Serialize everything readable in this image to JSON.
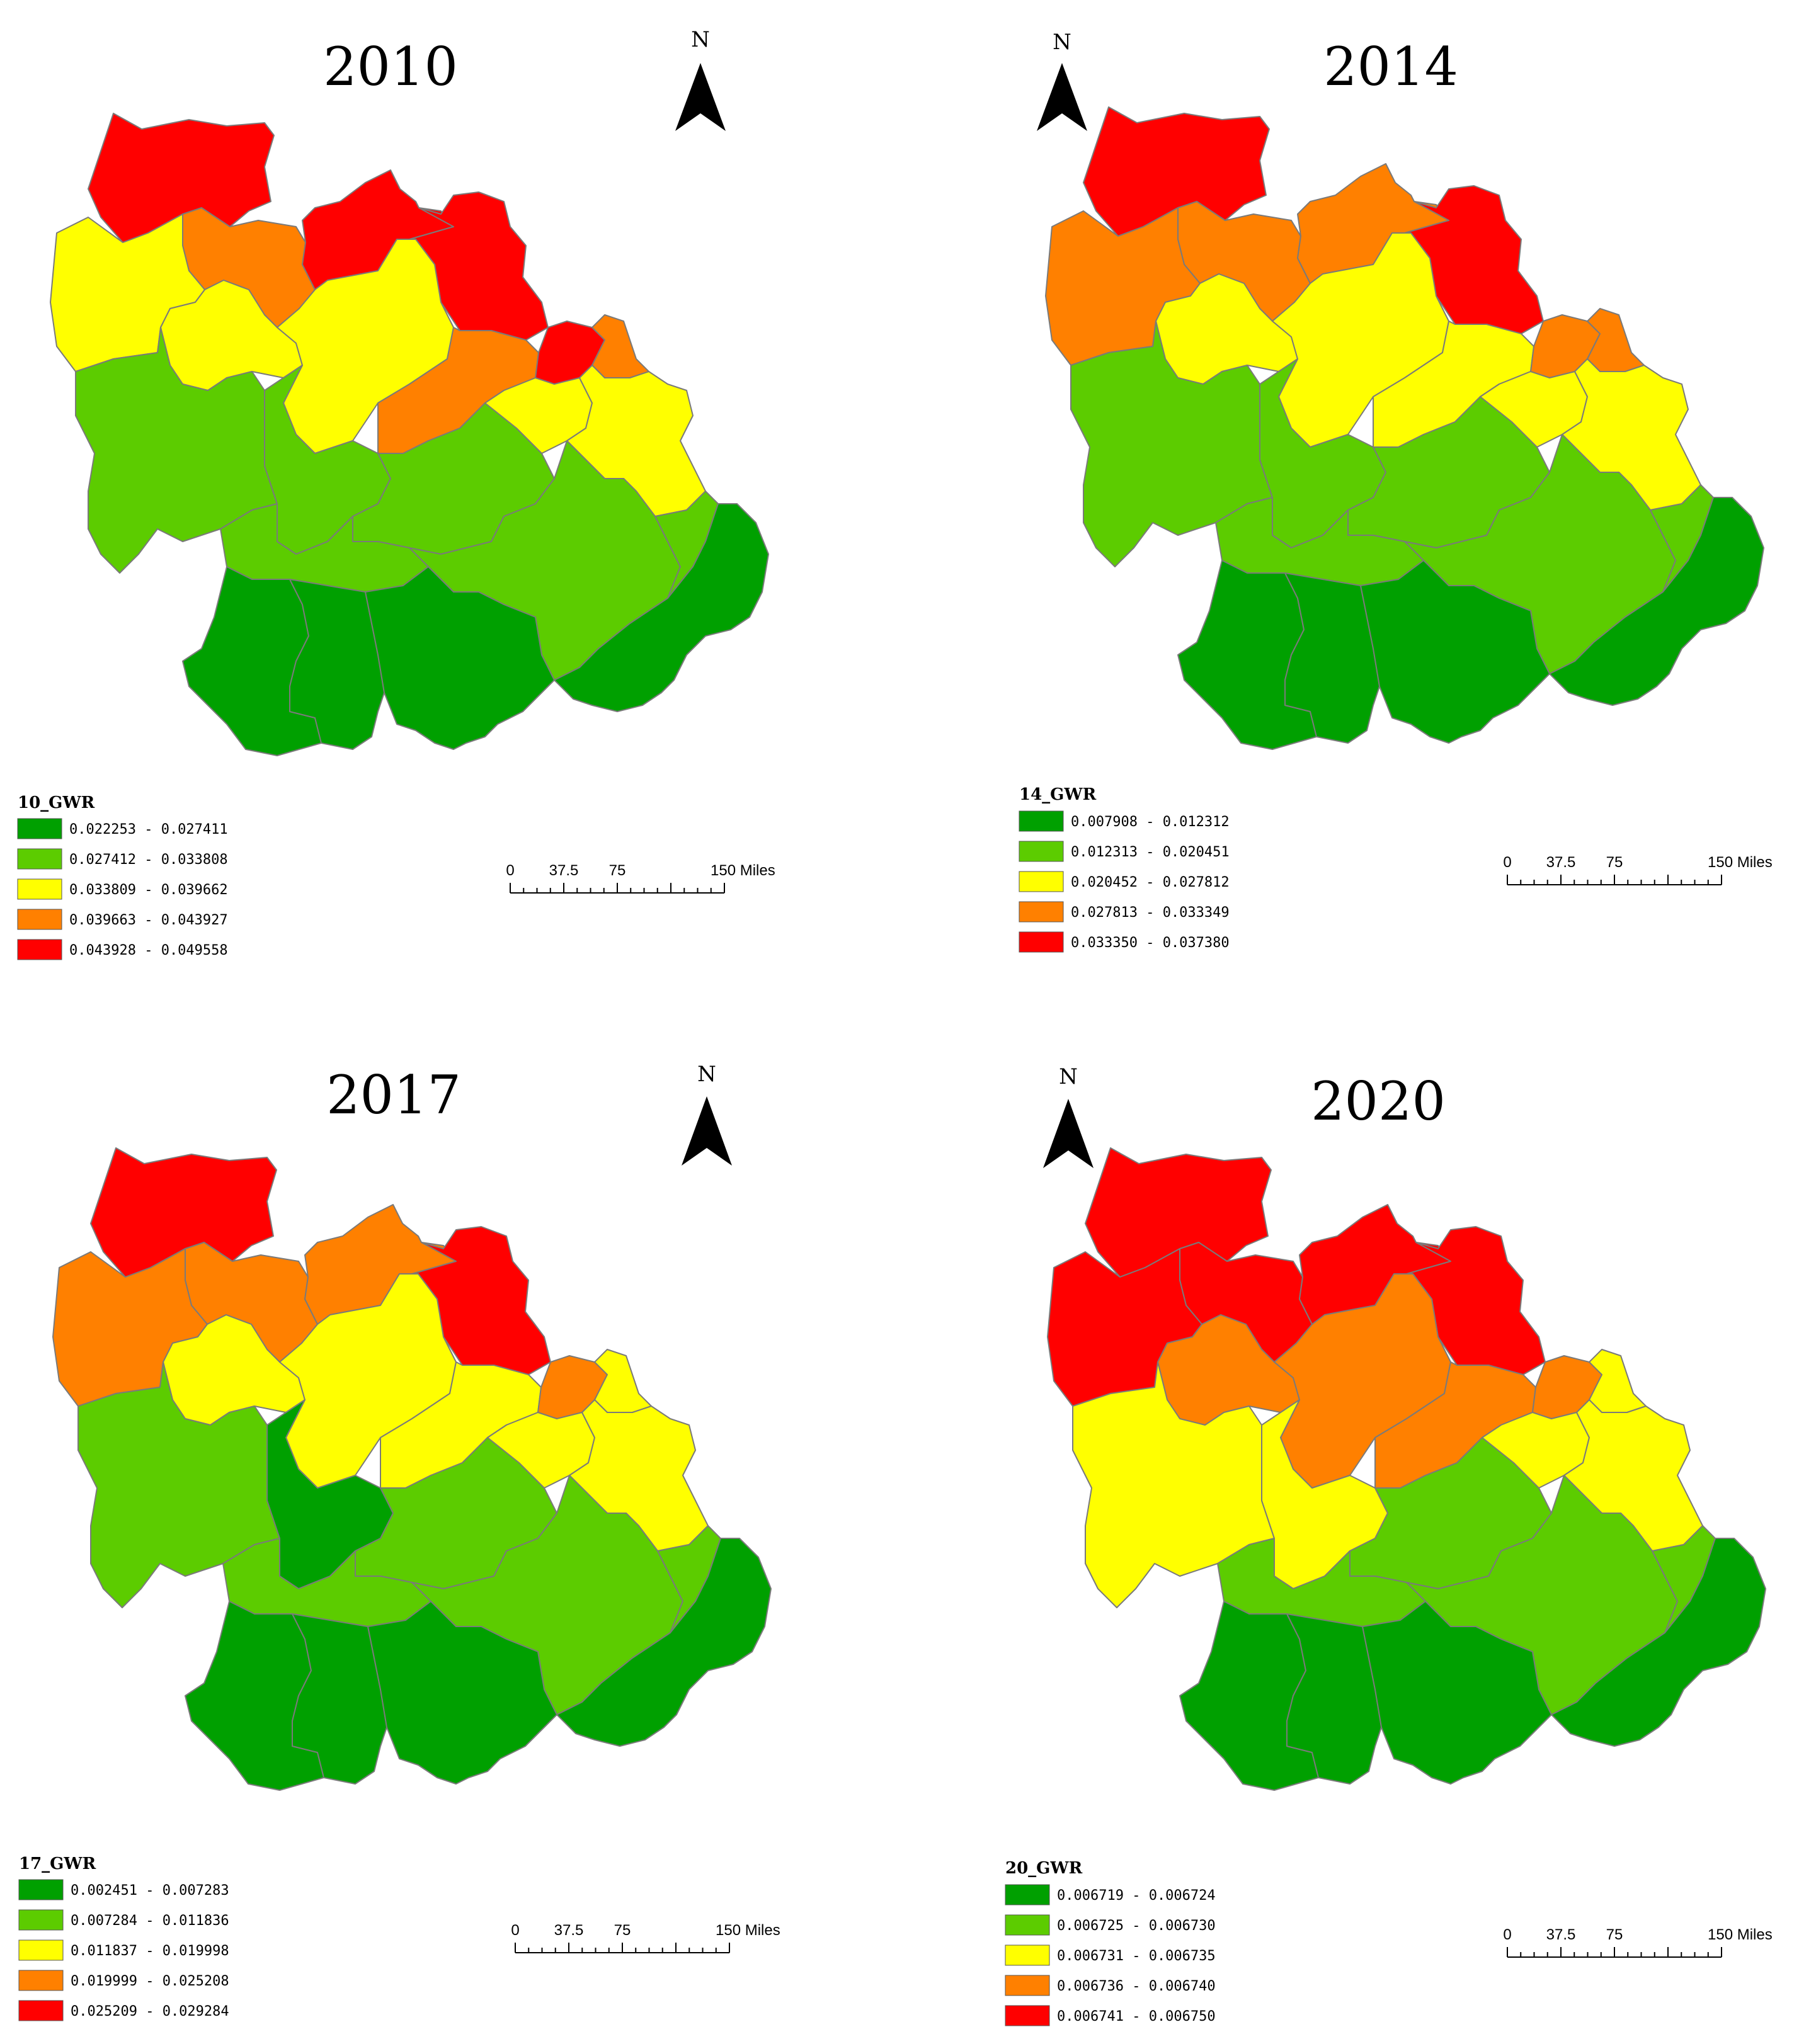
{
  "colors": {
    "class1": "#00a000",
    "class2": "#5ccc00",
    "class3": "#ffff00",
    "class4": "#ff8000",
    "class5": "#ff0000",
    "border": "#7a7a7a"
  },
  "north_label": "N",
  "scale_bar": {
    "ticks": [
      "0",
      "37.5",
      "75",
      "150 Miles"
    ]
  },
  "maps": [
    {
      "title": "2010",
      "legend_title": "10_GWR",
      "legend": [
        "0.022253 - 0.027411",
        "0.027412 - 0.033808",
        "0.033809 - 0.039662",
        "0.039663 - 0.043927",
        "0.043928 - 0.049558"
      ],
      "region_classes": [
        5,
        4,
        5,
        5,
        3,
        3,
        3,
        4,
        5,
        4,
        2,
        2,
        2,
        3,
        3,
        2,
        2,
        2,
        1,
        1,
        1,
        1
      ]
    },
    {
      "title": "2014",
      "legend_title": "14_GWR",
      "legend": [
        "0.007908 - 0.012312",
        "0.012313 - 0.020451",
        "0.020452 - 0.027812",
        "0.027813 - 0.033349",
        "0.033350 - 0.037380"
      ],
      "region_classes": [
        5,
        4,
        4,
        5,
        4,
        3,
        3,
        3,
        4,
        4,
        2,
        2,
        2,
        3,
        3,
        2,
        2,
        2,
        1,
        1,
        1,
        1
      ]
    },
    {
      "title": "2017",
      "legend_title": "17_GWR",
      "legend": [
        "0.002451 - 0.007283",
        "0.007284 - 0.011836",
        "0.011837 - 0.019998",
        "0.019999 - 0.025208",
        "0.025209 - 0.029284"
      ],
      "region_classes": [
        5,
        4,
        4,
        5,
        4,
        3,
        3,
        3,
        4,
        3,
        2,
        1,
        2,
        3,
        3,
        2,
        2,
        2,
        1,
        1,
        1,
        1
      ]
    },
    {
      "title": "2020",
      "legend_title": "20_GWR",
      "legend": [
        "0.006719 - 0.006724",
        "0.006725 - 0.006730",
        "0.006731 - 0.006735",
        "0.006736 - 0.006740",
        "0.006741 - 0.006750"
      ],
      "region_classes": [
        5,
        5,
        5,
        5,
        5,
        4,
        4,
        4,
        4,
        3,
        3,
        3,
        2,
        3,
        3,
        2,
        2,
        2,
        1,
        1,
        1,
        1
      ]
    }
  ]
}
